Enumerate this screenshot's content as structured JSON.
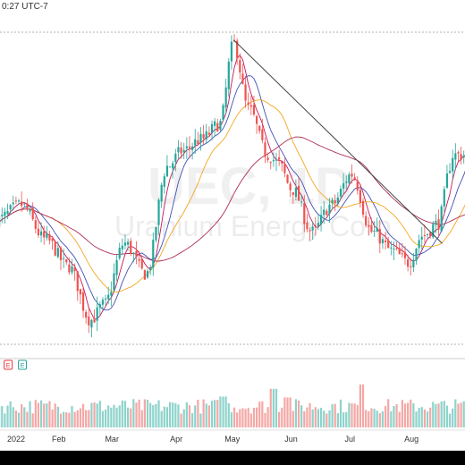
{
  "header": {
    "text": "0:27 UTC-7"
  },
  "watermark": {
    "symbol": "UEC, 1D",
    "name": "Uranium Energy Corp"
  },
  "earnings_markers": [
    {
      "label": "E",
      "month_index": 2.4,
      "color": "#e53935"
    },
    {
      "label": "E",
      "month_index": 5.3,
      "color": "#26a69a"
    }
  ],
  "colors": {
    "up": "#26a69a",
    "down": "#ef5350",
    "vol_up": "#8ed3cb",
    "vol_down": "#f4a8a6",
    "ma_fast": "#c2185b",
    "ma_mid": "#3f51b5",
    "ma_slow": "#f5a623",
    "ma_long": "#ad2e5a",
    "trendline": "#444444"
  },
  "chart_data": {
    "type": "candlestick",
    "title": "UEC, 1D",
    "subtitle": "Uranium Energy Corp",
    "x_tick_labels": [
      "2022",
      "Feb",
      "Mar",
      "Apr",
      "May",
      "Jun",
      "Jul",
      "Aug"
    ],
    "price_range": [
      2.5,
      6.6
    ],
    "grid": false,
    "legend": "none",
    "close_anchors": [
      [
        0,
        4.15
      ],
      [
        5,
        4.35
      ],
      [
        10,
        3.9
      ],
      [
        15,
        3.55
      ],
      [
        20,
        2.85
      ],
      [
        23,
        3.05
      ],
      [
        27,
        3.85
      ],
      [
        31,
        3.45
      ],
      [
        35,
        4.85
      ],
      [
        38,
        5.05
      ],
      [
        42,
        5.2
      ],
      [
        46,
        5.4
      ],
      [
        49,
        6.45
      ],
      [
        52,
        5.6
      ],
      [
        56,
        5.0
      ],
      [
        58,
        4.9
      ],
      [
        61,
        4.55
      ],
      [
        65,
        4.0
      ],
      [
        69,
        4.35
      ],
      [
        73,
        4.75
      ],
      [
        77,
        4.0
      ],
      [
        81,
        3.75
      ],
      [
        84,
        3.6
      ],
      [
        87,
        3.95
      ],
      [
        90,
        4.1
      ],
      [
        93,
        4.9
      ],
      [
        96,
        5.0
      ]
    ],
    "moving_average_periods": [
      5,
      10,
      20,
      50
    ],
    "trendline": [
      [
        49,
        6.5
      ],
      [
        91,
        3.85
      ]
    ],
    "volume": {
      "base": 0.32,
      "spikes": [
        [
          47,
          0.72
        ],
        [
          57,
          0.9
        ],
        [
          75,
          1.0
        ],
        [
          60,
          0.7
        ]
      ]
    }
  }
}
